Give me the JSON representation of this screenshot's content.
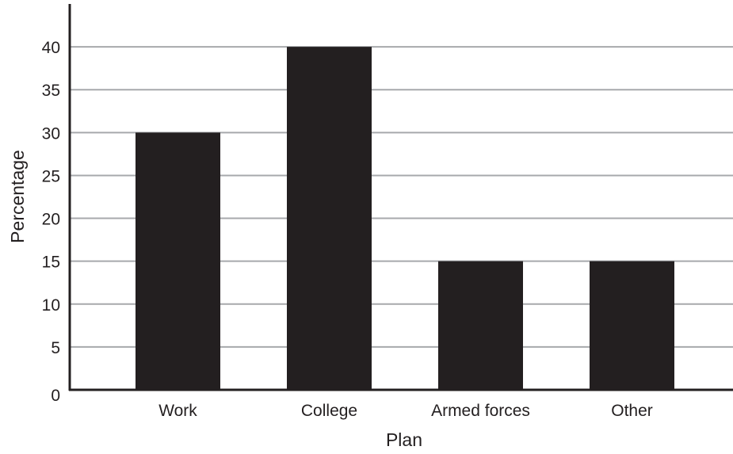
{
  "chart_data": {
    "type": "bar",
    "categories": [
      "Work",
      "College",
      "Armed forces",
      "Other"
    ],
    "values": [
      30,
      40,
      15,
      15
    ],
    "title": "",
    "xlabel": "Plan",
    "ylabel": "Percentage",
    "ylim": [
      0,
      45
    ],
    "yticks": [
      0,
      5,
      10,
      15,
      20,
      25,
      30,
      35,
      40
    ],
    "grid": true,
    "legend": "none",
    "colors": {
      "bar": "#231f20",
      "grid": "#a7a9ac",
      "axis": "#231f20",
      "text": "#231f20"
    }
  }
}
